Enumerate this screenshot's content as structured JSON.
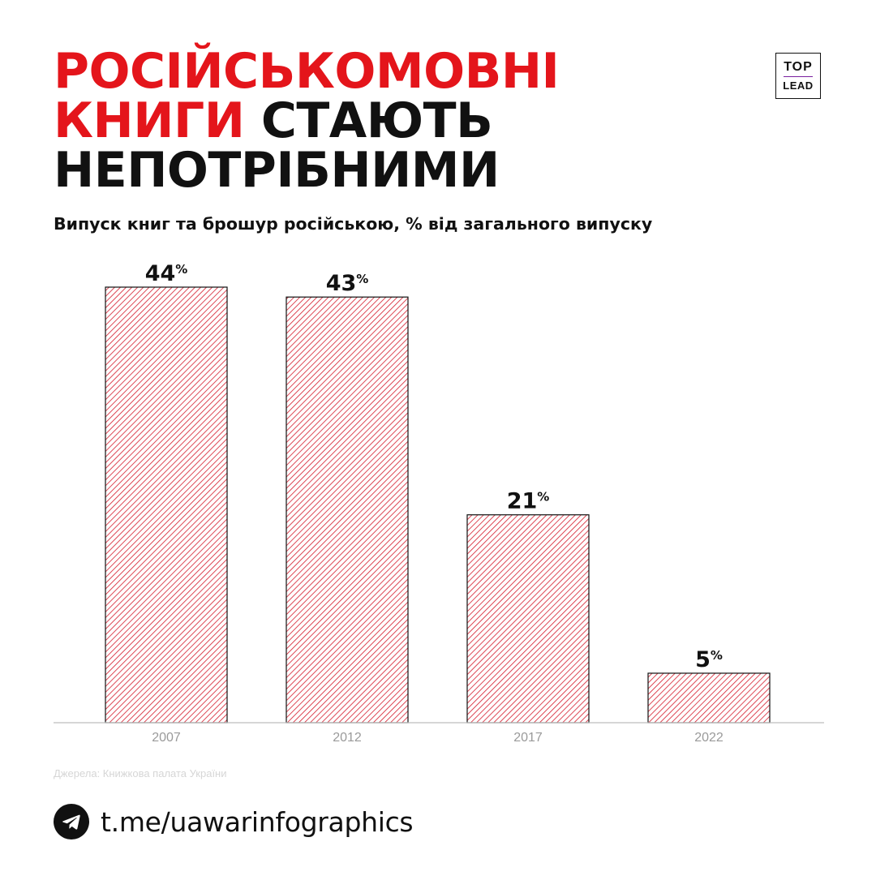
{
  "header": {
    "title_red_1": "РОСІЙСЬКОМОВНІ",
    "title_red_2": "КНИГИ",
    "title_black_2": "СТАЮТЬ",
    "title_black_3": "НЕПОТРІБНИМИ",
    "subtitle": "Випуск книг та брошур російською, % від загального випуску"
  },
  "logo": {
    "top": "TOP",
    "bottom": "LEAD"
  },
  "source": "Джерела: Книжкова палата України",
  "footer": {
    "icon": "telegram-icon",
    "link": "t.me/uawarinfographics"
  },
  "colors": {
    "accent": "#e4151b",
    "text": "#111111",
    "hatch": "#d51a2b",
    "axis_labels": "#9a9a9a",
    "source_text": "#d6d6d6"
  },
  "chart_data": {
    "type": "bar",
    "categories": [
      "2007",
      "2012",
      "2017",
      "2022"
    ],
    "values": [
      44,
      43,
      21,
      5
    ],
    "value_suffix": "%",
    "ylim": [
      0,
      44
    ],
    "grid": false,
    "bar_fill": "diagonal-hatch"
  }
}
